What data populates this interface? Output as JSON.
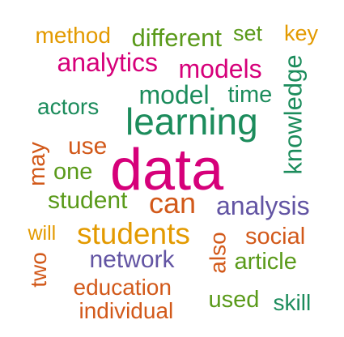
{
  "colors": {
    "magenta": "#d6007a",
    "green": "#1c8c5c",
    "lime": "#5a9a1a",
    "orange": "#e39a00",
    "rust": "#d2591a",
    "purple": "#6254a3"
  },
  "words": [
    {
      "text": "data",
      "color": "magenta",
      "rotate": 0
    },
    {
      "text": "learning",
      "color": "green",
      "rotate": 0
    },
    {
      "text": "students",
      "color": "orange",
      "rotate": 0
    },
    {
      "text": "analytics",
      "color": "magenta",
      "rotate": 0
    },
    {
      "text": "models",
      "color": "magenta",
      "rotate": 0
    },
    {
      "text": "model",
      "color": "green",
      "rotate": 0
    },
    {
      "text": "can",
      "color": "rust",
      "rotate": 0
    },
    {
      "text": "analysis",
      "color": "purple",
      "rotate": 0
    },
    {
      "text": "network",
      "color": "purple",
      "rotate": 0
    },
    {
      "text": "knowledge",
      "color": "green",
      "rotate": -90
    },
    {
      "text": "different",
      "color": "lime",
      "rotate": 0
    },
    {
      "text": "method",
      "color": "orange",
      "rotate": 0
    },
    {
      "text": "student",
      "color": "lime",
      "rotate": 0
    },
    {
      "text": "education",
      "color": "rust",
      "rotate": 0
    },
    {
      "text": "individual",
      "color": "rust",
      "rotate": 0
    },
    {
      "text": "actors",
      "color": "green",
      "rotate": 0
    },
    {
      "text": "time",
      "color": "green",
      "rotate": 0
    },
    {
      "text": "social",
      "color": "rust",
      "rotate": 0
    },
    {
      "text": "article",
      "color": "lime",
      "rotate": 0
    },
    {
      "text": "used",
      "color": "lime",
      "rotate": 0
    },
    {
      "text": "skill",
      "color": "green",
      "rotate": 0
    },
    {
      "text": "use",
      "color": "rust",
      "rotate": 0
    },
    {
      "text": "one",
      "color": "lime",
      "rotate": 0
    },
    {
      "text": "set",
      "color": "lime",
      "rotate": 0
    },
    {
      "text": "key",
      "color": "orange",
      "rotate": 0
    },
    {
      "text": "will",
      "color": "orange",
      "rotate": 0
    },
    {
      "text": "may",
      "color": "rust",
      "rotate": -90
    },
    {
      "text": "two",
      "color": "rust",
      "rotate": -90
    },
    {
      "text": "also",
      "color": "rust",
      "rotate": -90
    }
  ]
}
